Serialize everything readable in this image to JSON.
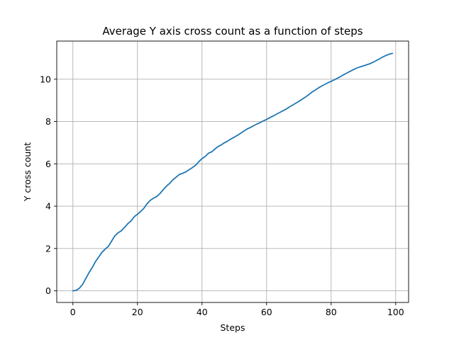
{
  "chart_data": {
    "type": "line",
    "title": "Average Y axis cross count as a function of steps",
    "xlabel": "Steps",
    "ylabel": "Y cross count",
    "xlim": [
      -5,
      104
    ],
    "ylim": [
      -0.55,
      11.8
    ],
    "xticks": [
      0,
      20,
      40,
      60,
      80,
      100
    ],
    "yticks": [
      0,
      2,
      4,
      6,
      8,
      10
    ],
    "grid": true,
    "series": [
      {
        "color": "#1f77b4",
        "x": [
          0,
          1,
          2,
          3,
          4,
          5,
          6,
          7,
          8,
          9,
          10,
          11,
          12,
          13,
          14,
          15,
          16,
          17,
          18,
          19,
          20,
          21,
          22,
          23,
          24,
          25,
          26,
          27,
          28,
          29,
          30,
          31,
          32,
          33,
          34,
          35,
          36,
          37,
          38,
          39,
          40,
          41,
          42,
          43,
          44,
          45,
          46,
          47,
          48,
          49,
          50,
          51,
          52,
          53,
          54,
          55,
          56,
          57,
          58,
          59,
          60,
          61,
          62,
          63,
          64,
          65,
          66,
          67,
          68,
          69,
          70,
          71,
          72,
          73,
          74,
          75,
          76,
          77,
          78,
          79,
          80,
          81,
          82,
          83,
          84,
          85,
          86,
          87,
          88,
          89,
          90,
          91,
          92,
          93,
          94,
          95,
          96,
          97,
          98,
          99
        ],
        "y": [
          0.0,
          0.02,
          0.12,
          0.3,
          0.58,
          0.86,
          1.1,
          1.38,
          1.6,
          1.82,
          1.97,
          2.1,
          2.35,
          2.6,
          2.74,
          2.84,
          3.0,
          3.17,
          3.3,
          3.5,
          3.62,
          3.75,
          3.9,
          4.12,
          4.28,
          4.38,
          4.46,
          4.6,
          4.78,
          4.95,
          5.08,
          5.25,
          5.37,
          5.5,
          5.55,
          5.62,
          5.72,
          5.82,
          5.93,
          6.1,
          6.25,
          6.35,
          6.5,
          6.57,
          6.7,
          6.82,
          6.9,
          7.0,
          7.08,
          7.18,
          7.26,
          7.35,
          7.45,
          7.55,
          7.65,
          7.72,
          7.8,
          7.88,
          7.95,
          8.03,
          8.1,
          8.18,
          8.26,
          8.34,
          8.42,
          8.5,
          8.58,
          8.68,
          8.77,
          8.86,
          8.95,
          9.05,
          9.15,
          9.26,
          9.38,
          9.48,
          9.58,
          9.67,
          9.75,
          9.83,
          9.9,
          9.97,
          10.05,
          10.13,
          10.22,
          10.3,
          10.38,
          10.46,
          10.53,
          10.58,
          10.63,
          10.68,
          10.73,
          10.8,
          10.88,
          10.96,
          11.05,
          11.12,
          11.18,
          11.22
        ]
      }
    ]
  }
}
